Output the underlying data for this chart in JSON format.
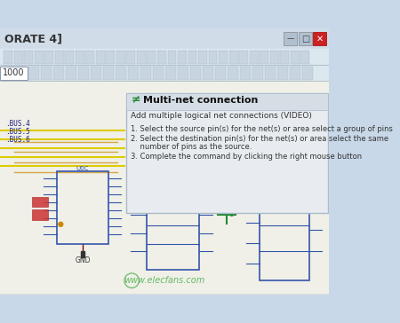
{
  "title_bar_text": "ORATE 4]",
  "title_bar_bg": "#d0dce8",
  "window_bg": "#c8d8e8",
  "toolbar_bg": "#dce8f0",
  "schematic_bg": "#f5f5f0",
  "popup_bg": "#e8ecf0",
  "popup_title": "Multi-net connection",
  "popup_subtitle": "Add multiple logical net connections (VIDEO)",
  "popup_line1": "1. Select the source pin(s) for the net(s) or area select a group of pins",
  "popup_line2": "2. Select the destination pin(s) for the net(s) or area select the same",
  "popup_line2b": "    number of pins as the source.",
  "popup_line3": "3. Complete the command by clicking the right mouse button",
  "bus_labels": [
    ".BUS.4",
    ".BUS.5",
    ".BUS.6"
  ],
  "watermark": "www.elecfans.com",
  "close_btn_color": "#cc2222",
  "blue_component_color": "#3355aa",
  "orange_bus_color": "#cc8800",
  "yellow_line_color": "#ddcc00",
  "red_component_color": "#cc3333",
  "green_cursor_color": "#228833"
}
